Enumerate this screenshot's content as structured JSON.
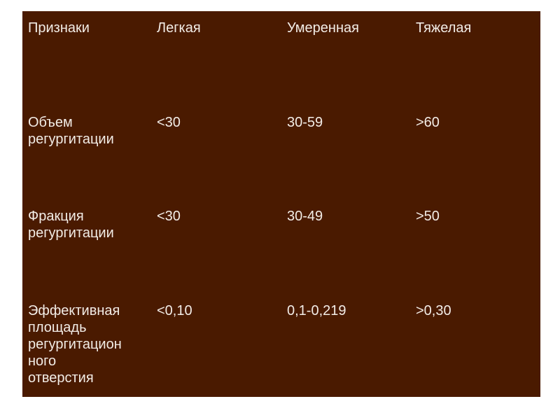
{
  "table": {
    "headers": [
      "Признаки",
      "Легкая",
      "Умеренная",
      "Тяжелая"
    ],
    "rows": [
      [
        "Объем\nрегургитации",
        "<30",
        "30-59",
        ">60"
      ],
      [
        "Фракция\nрегургитации",
        "<30",
        "30-49",
        ">50"
      ],
      [
        "Эффективная\nплощадь\nрегургитацион\nного\nотверстия",
        "<0,10",
        "0,1-0,219",
        ">0,30"
      ]
    ]
  },
  "colors": {
    "background": "#4a1a00",
    "text": "#f2ece6"
  }
}
